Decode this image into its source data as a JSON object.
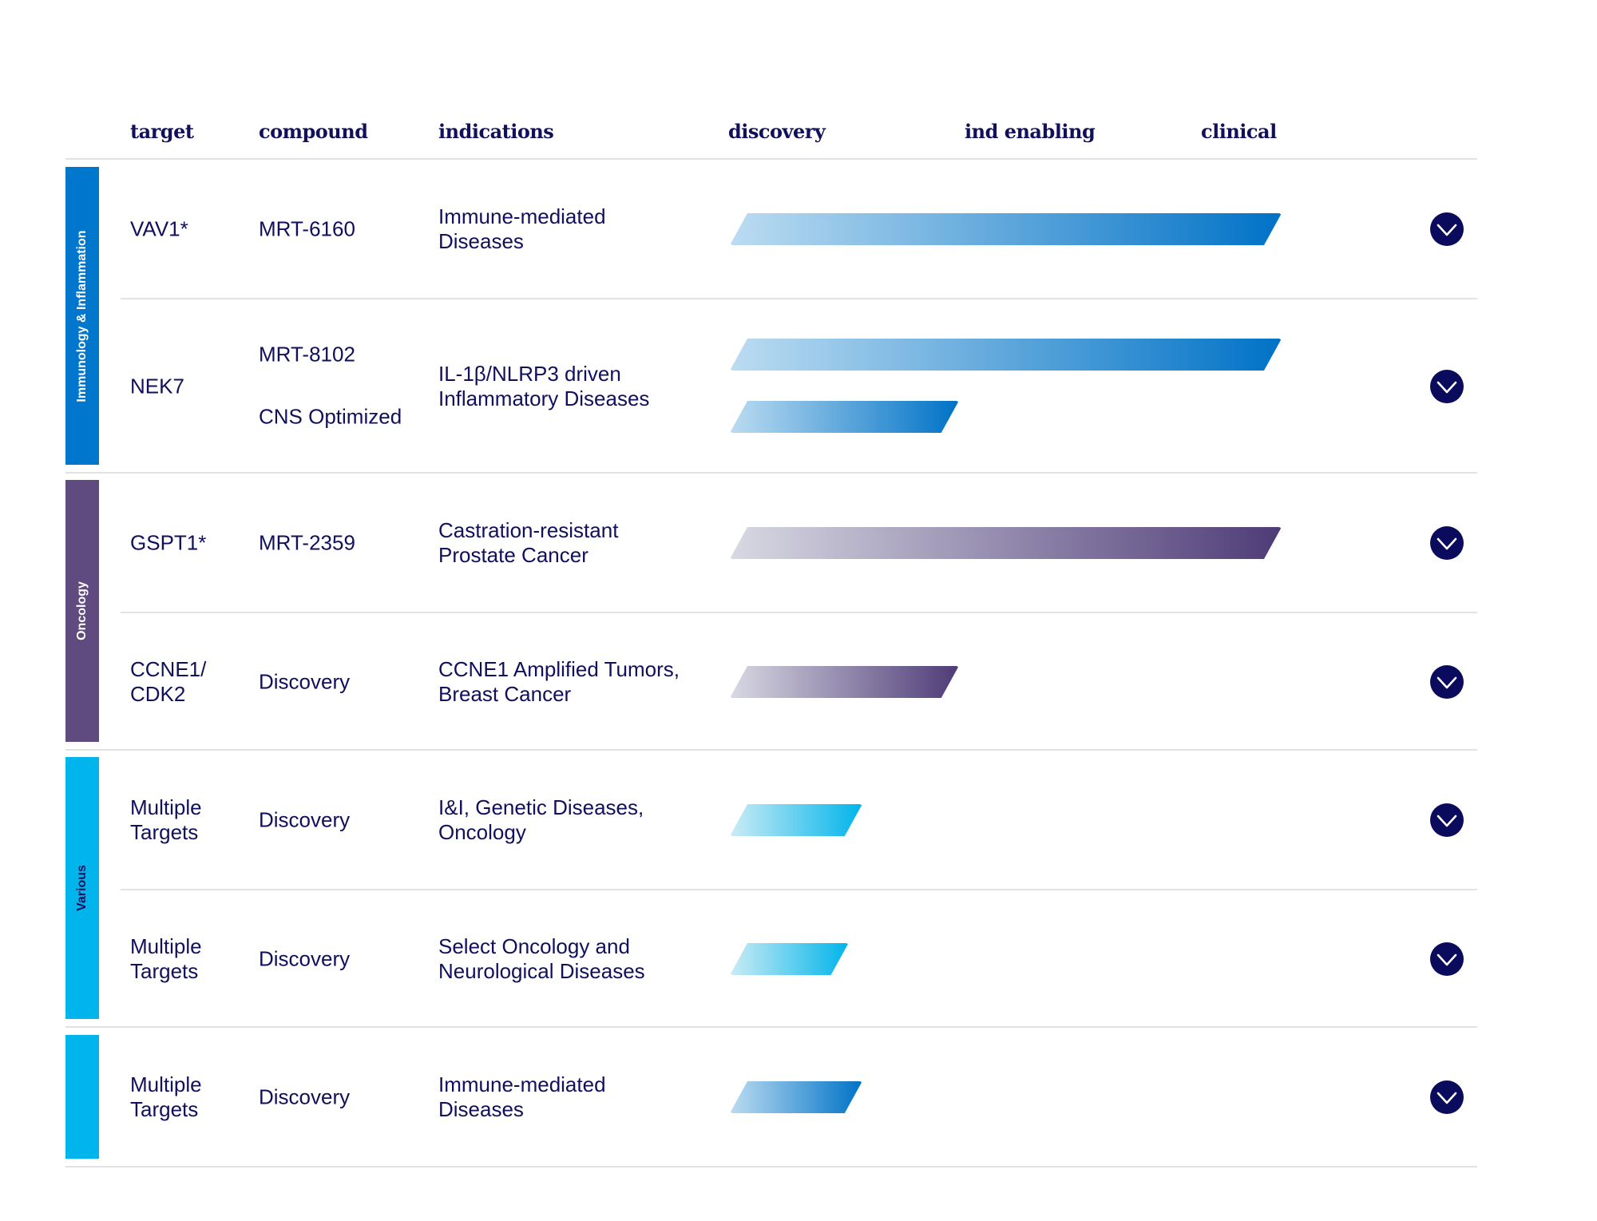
{
  "headers": {
    "target": "target",
    "compound": "compound",
    "indications": "indications",
    "discovery": "discovery",
    "ind_enabling": "ind enabling",
    "clinical": "clinical"
  },
  "colors": {
    "text": "#10105c",
    "chevron": "#0b0b5e",
    "immunology": "#0077cc",
    "oncology": "#5f4b7f",
    "various": "#00b5ec"
  },
  "groups": [
    {
      "label": "Immunology & Inflammation",
      "color": "#0077cc",
      "label_color": "#ffffff"
    },
    {
      "label": "Oncology",
      "color": "#5f4b7f",
      "label_color": "#ffffff"
    },
    {
      "label": "Various",
      "color": "#00b5ec",
      "label_color": "#10105c"
    },
    {
      "label": "",
      "color": "#00b5ec",
      "label_color": "#10105c"
    }
  ],
  "rows": [
    {
      "group": 0,
      "target": "VAV1*",
      "compounds": [
        "MRT-6160"
      ],
      "indications": "Immune-mediated\nDiseases",
      "progress": [
        1.0
      ],
      "gradient": [
        "#bcdcf1",
        "#0072c6"
      ],
      "icon": "chevron-down-icon"
    },
    {
      "group": 0,
      "target": "NEK7",
      "compounds": [
        "MRT-8102",
        "CNS Optimized"
      ],
      "indications": "IL-1β/NLRP3 driven\nInflammatory Diseases",
      "progress": [
        1.0,
        0.415
      ],
      "gradient": [
        "#bcdcf1",
        "#0072c6"
      ],
      "icon": "chevron-down-icon"
    },
    {
      "group": 1,
      "target": "GSPT1*",
      "compounds": [
        "MRT-2359"
      ],
      "indications": "Castration-resistant\nProstate Cancer",
      "progress": [
        1.0
      ],
      "gradient": [
        "#d8d9e3",
        "#4e3b77"
      ],
      "icon": "chevron-down-icon"
    },
    {
      "group": 1,
      "target": "CCNE1/\nCDK2",
      "compounds": [
        "Discovery"
      ],
      "indications": "CCNE1 Amplified Tumors,\nBreast Cancer",
      "progress": [
        0.415
      ],
      "gradient": [
        "#d8d9e3",
        "#4e3b77"
      ],
      "icon": "chevron-down-icon"
    },
    {
      "group": 2,
      "target": "Multiple\nTargets",
      "compounds": [
        "Discovery"
      ],
      "indications": "I&I, Genetic Diseases,\nOncology",
      "progress": [
        0.24
      ],
      "gradient": [
        "#cbecf5",
        "#00b4ea"
      ],
      "icon": "chevron-down-icon"
    },
    {
      "group": 2,
      "target": "Multiple\nTargets",
      "compounds": [
        "Discovery"
      ],
      "indications": "Select Oncology and\nNeurological Diseases",
      "progress": [
        0.215
      ],
      "gradient": [
        "#cbecf5",
        "#00b4ea"
      ],
      "icon": "chevron-down-icon"
    },
    {
      "group": 3,
      "target": "Multiple\nTargets",
      "compounds": [
        "Discovery"
      ],
      "indications": "Immune-mediated\nDiseases",
      "progress": [
        0.24
      ],
      "gradient": [
        "#bcdcf1",
        "#0072c6"
      ],
      "icon": "chevron-down-icon"
    }
  ]
}
